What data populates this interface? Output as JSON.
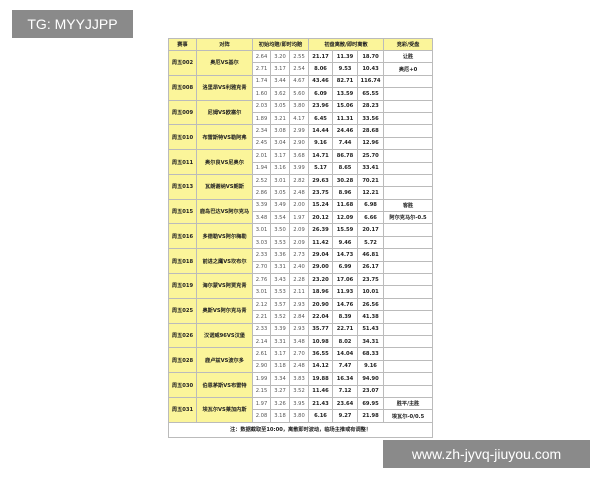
{
  "watermark_top": "TG: MYYJJPP",
  "watermark_bottom": "www.zh-jyvq-jiuyou.com",
  "headers": [
    "赛事",
    "对阵",
    "初始均赔/即时均赔",
    "初盘离散/即时离散",
    "竞彩/受盘"
  ],
  "matches": [
    {
      "id": "周五002",
      "match": "奥厄VS基尔",
      "rows": [
        [
          "2.64",
          "3.20",
          "2.55",
          "21.17",
          "11.39",
          "18.70",
          "让胜"
        ],
        [
          "2.71",
          "3.17",
          "2.54",
          "8.06",
          "9.53",
          "10.43",
          "奥厄+0"
        ]
      ]
    },
    {
      "id": "周五008",
      "match": "洛里昂VS利雅克青",
      "rows": [
        [
          "1.74",
          "3.44",
          "4.67",
          "43.46",
          "82.71",
          "116.74",
          ""
        ],
        [
          "1.60",
          "3.62",
          "5.60",
          "6.09",
          "13.59",
          "65.55",
          ""
        ]
      ]
    },
    {
      "id": "周五009",
      "match": "尼姆VS欧塞尔",
      "rows": [
        [
          "2.03",
          "3.05",
          "3.80",
          "23.96",
          "15.06",
          "28.23",
          ""
        ],
        [
          "1.89",
          "3.21",
          "4.17",
          "6.45",
          "11.31",
          "33.56",
          ""
        ]
      ]
    },
    {
      "id": "周五010",
      "match": "布雷斯特VS勒阿弗",
      "rows": [
        [
          "2.34",
          "3.08",
          "2.99",
          "14.44",
          "24.46",
          "28.68",
          ""
        ],
        [
          "2.45",
          "3.04",
          "2.90",
          "9.16",
          "7.44",
          "12.96",
          ""
        ]
      ]
    },
    {
      "id": "周五011",
      "match": "奥尔良VS尼奥尔",
      "rows": [
        [
          "2.01",
          "3.17",
          "3.68",
          "14.71",
          "86.78",
          "25.70",
          ""
        ],
        [
          "1.94",
          "3.16",
          "3.99",
          "5.17",
          "8.65",
          "33.41",
          ""
        ]
      ]
    },
    {
      "id": "周五013",
      "match": "瓦朗谢纳VS朗斯",
      "rows": [
        [
          "2.52",
          "3.01",
          "2.82",
          "29.63",
          "30.28",
          "70.21",
          ""
        ],
        [
          "2.86",
          "3.05",
          "2.48",
          "23.75",
          "8.96",
          "12.21",
          ""
        ]
      ]
    },
    {
      "id": "周五015",
      "match": "鹿岛巴达VS阿尔克马",
      "rows": [
        [
          "3.39",
          "3.49",
          "2.00",
          "15.24",
          "11.68",
          "6.98",
          "客胜"
        ],
        [
          "3.48",
          "3.54",
          "1.97",
          "20.12",
          "12.09",
          "6.66",
          "阿尔克马尔-0.5"
        ]
      ]
    },
    {
      "id": "周五016",
      "match": "多德勒VS阿尔梅勒",
      "rows": [
        [
          "3.01",
          "3.50",
          "2.09",
          "26.39",
          "15.59",
          "20.17",
          ""
        ],
        [
          "3.03",
          "3.53",
          "2.09",
          "11.42",
          "9.46",
          "5.72",
          ""
        ]
      ]
    },
    {
      "id": "周五018",
      "match": "前进之鹰VS坎布尔",
      "rows": [
        [
          "2.33",
          "3.36",
          "2.73",
          "29.04",
          "14.73",
          "46.81",
          ""
        ],
        [
          "2.70",
          "3.31",
          "2.40",
          "29.00",
          "6.99",
          "26.17",
          ""
        ]
      ]
    },
    {
      "id": "周五019",
      "match": "海尔蒙VS阿贾克青",
      "rows": [
        [
          "2.76",
          "3.43",
          "2.28",
          "23.20",
          "17.06",
          "23.75",
          ""
        ],
        [
          "3.01",
          "3.53",
          "2.11",
          "18.96",
          "11.93",
          "10.01",
          ""
        ]
      ]
    },
    {
      "id": "周五025",
      "match": "奥斯VS阿尔克马青",
      "rows": [
        [
          "2.12",
          "3.57",
          "2.93",
          "20.90",
          "14.76",
          "26.56",
          ""
        ],
        [
          "2.21",
          "3.52",
          "2.84",
          "22.04",
          "8.39",
          "41.38",
          ""
        ]
      ]
    },
    {
      "id": "周五026",
      "match": "汉诺威96VS汉堡",
      "rows": [
        [
          "2.33",
          "3.39",
          "2.93",
          "35.77",
          "22.71",
          "51.43",
          ""
        ],
        [
          "2.14",
          "3.31",
          "3.48",
          "10.98",
          "8.02",
          "34.31",
          ""
        ]
      ]
    },
    {
      "id": "周五028",
      "match": "鹿卢兹VS波尔多",
      "rows": [
        [
          "2.61",
          "3.17",
          "2.70",
          "36.55",
          "14.04",
          "68.33",
          ""
        ],
        [
          "2.90",
          "3.18",
          "2.48",
          "14.12",
          "7.47",
          "9.16",
          ""
        ]
      ]
    },
    {
      "id": "周五030",
      "match": "伯恩茅斯VS布雷特",
      "rows": [
        [
          "1.99",
          "3.34",
          "3.83",
          "19.88",
          "16.34",
          "94.90",
          ""
        ],
        [
          "2.15",
          "3.27",
          "3.52",
          "11.46",
          "7.12",
          "23.07",
          ""
        ]
      ]
    },
    {
      "id": "周五031",
      "match": "埃瓦尔VS莱加内斯",
      "rows": [
        [
          "1.97",
          "3.26",
          "3.95",
          "21.43",
          "23.64",
          "69.95",
          "胜平/主胜"
        ],
        [
          "2.08",
          "3.18",
          "3.80",
          "6.16",
          "9.27",
          "21.98",
          "埃瓦尔-0/0.5"
        ]
      ]
    }
  ],
  "footer": "注：数据截取至10:00，离散即时波动，临场主推或有调整！"
}
